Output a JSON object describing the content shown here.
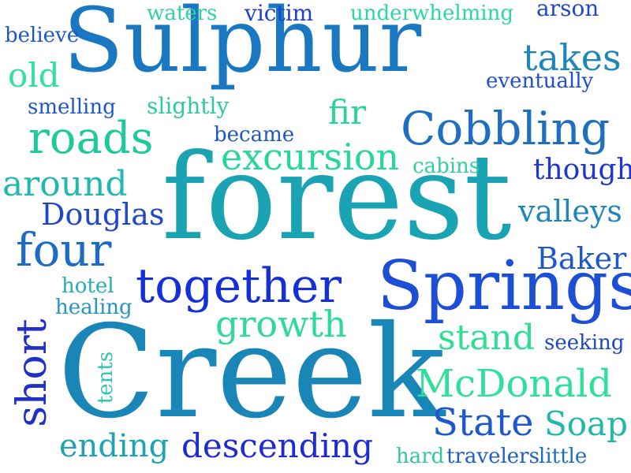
{
  "words": [
    {
      "id": "sulphur",
      "text": "Sulphur",
      "color": "#1a78c2"
    },
    {
      "id": "forest",
      "text": "forest",
      "color": "#1aa3b2"
    },
    {
      "id": "creek",
      "text": "Creek",
      "color": "#1a86b8"
    },
    {
      "id": "springs",
      "text": "Springs",
      "color": "#1d4fd6"
    },
    {
      "id": "cobbling",
      "text": "Cobbling",
      "color": "#1e6fbf"
    },
    {
      "id": "together",
      "text": "together",
      "color": "#1530d8"
    },
    {
      "id": "excursion",
      "text": "excursion",
      "color": "#27d69a"
    },
    {
      "id": "roads",
      "text": "roads",
      "color": "#20c99a"
    },
    {
      "id": "four",
      "text": "four",
      "color": "#1e6bc6"
    },
    {
      "id": "around",
      "text": "around",
      "color": "#23b8ad"
    },
    {
      "id": "short",
      "text": "short",
      "color": "#1f2fc8"
    },
    {
      "id": "mcdonald",
      "text": "McDonald",
      "color": "#2fe09a"
    },
    {
      "id": "state",
      "text": "State",
      "color": "#1d58cc"
    },
    {
      "id": "descending",
      "text": "descending",
      "color": "#1f2bd0"
    },
    {
      "id": "growth",
      "text": "growth",
      "color": "#2ed99a"
    },
    {
      "id": "stand",
      "text": "stand",
      "color": "#2fde95"
    },
    {
      "id": "takes",
      "text": "takes",
      "color": "#1e86b9"
    },
    {
      "id": "old",
      "text": "old",
      "color": "#2fe0a0"
    },
    {
      "id": "douglas",
      "text": "Douglas",
      "color": "#1f47cc"
    },
    {
      "id": "valleys",
      "text": "valleys",
      "color": "#1b86bd"
    },
    {
      "id": "though",
      "text": "though",
      "color": "#1e38cf"
    },
    {
      "id": "baker",
      "text": "Baker",
      "color": "#1e58cd"
    },
    {
      "id": "soap",
      "text": "Soap",
      "color": "#22b8a8"
    },
    {
      "id": "ending",
      "text": "ending",
      "color": "#1fa3b2"
    },
    {
      "id": "fir",
      "text": "fir",
      "color": "#2bd39c"
    },
    {
      "id": "victim",
      "text": "victim",
      "color": "#1e3fd0"
    },
    {
      "id": "waters",
      "text": "waters",
      "color": "#2fd2a0"
    },
    {
      "id": "underwhelming",
      "text": "underwhelming",
      "color": "#2bd9a0"
    },
    {
      "id": "arson",
      "text": "arson",
      "color": "#1e48c8"
    },
    {
      "id": "believe",
      "text": "believe",
      "color": "#1e58c8"
    },
    {
      "id": "eventually",
      "text": "eventually",
      "color": "#1e4fd0"
    },
    {
      "id": "smelling",
      "text": "smelling",
      "color": "#1e58c8"
    },
    {
      "id": "slightly",
      "text": "slightly",
      "color": "#2ec9a0"
    },
    {
      "id": "became",
      "text": "became",
      "color": "#1e58c8"
    },
    {
      "id": "cabins",
      "text": "cabins",
      "color": "#2fcfa0"
    },
    {
      "id": "hotel",
      "text": "hotel",
      "color": "#23b0b0"
    },
    {
      "id": "healing",
      "text": "healing",
      "color": "#2396bb"
    },
    {
      "id": "tents",
      "text": "tents",
      "color": "#2bc6ab"
    },
    {
      "id": "seeking",
      "text": "seeking",
      "color": "#1e48c8"
    },
    {
      "id": "hard",
      "text": "hard",
      "color": "#2fc9a0"
    },
    {
      "id": "travelers",
      "text": "travelers",
      "color": "#1e5ec8"
    },
    {
      "id": "little",
      "text": "little",
      "color": "#1e6fc2"
    }
  ]
}
